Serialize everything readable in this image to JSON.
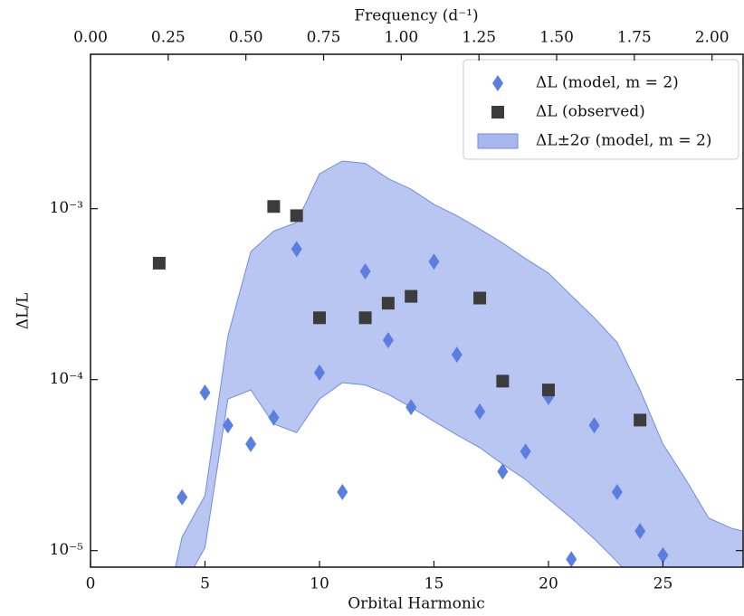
{
  "chart_data": {
    "type": "scatter",
    "xlabel": "Orbital Harmonic",
    "ylabel": "ΔL/L",
    "top_xlabel": "Frequency (d⁻¹)",
    "xlim": [
      0,
      28.5
    ],
    "xticks": [
      0,
      5,
      10,
      15,
      20,
      25
    ],
    "top_xlim": [
      0,
      2.1
    ],
    "top_xticks": [
      {
        "value": 0,
        "label": "0.00"
      },
      {
        "value": 0.25,
        "label": "0.25"
      },
      {
        "value": 0.5,
        "label": "0.50"
      },
      {
        "value": 0.75,
        "label": "0.75"
      },
      {
        "value": 1,
        "label": "1.00"
      },
      {
        "value": 1.25,
        "label": "1.25"
      },
      {
        "value": 1.5,
        "label": "1.50"
      },
      {
        "value": 1.75,
        "label": "1.75"
      },
      {
        "value": 2,
        "label": "2.00"
      }
    ],
    "ylim": [
      8e-06,
      0.008
    ],
    "yscale": "log",
    "yticks": [
      {
        "value": 1e-05,
        "label": "10⁻⁵"
      },
      {
        "value": 0.0001,
        "label": "10⁻⁴"
      },
      {
        "value": 0.001,
        "label": "10⁻³"
      }
    ],
    "legend": "upper right",
    "series": [
      {
        "name": "ΔL (model, m = 2)",
        "color": "#5b7fe0",
        "marker": "diamond",
        "x": [
          4,
          5,
          6,
          7,
          8,
          9,
          10,
          11,
          12,
          13,
          14,
          15,
          16,
          17,
          18,
          19,
          20,
          21,
          22,
          23,
          24,
          25
        ],
        "values": [
          2.05e-05,
          8.4e-05,
          5.4e-05,
          4.2e-05,
          6e-05,
          0.00058,
          0.00011,
          2.2e-05,
          0.00043,
          0.00017,
          6.9e-05,
          0.00049,
          0.00014,
          6.5e-05,
          2.9e-05,
          3.8e-05,
          7.9e-05,
          8.9e-06,
          5.4e-05,
          2.2e-05,
          1.3e-05,
          9.4e-06
        ]
      },
      {
        "name": "ΔL (observed)",
        "color": "#3c3c3c",
        "marker": "square",
        "x": [
          3,
          8,
          9,
          10,
          12,
          13,
          14,
          17,
          18,
          20,
          24
        ],
        "values": [
          0.00048,
          0.00103,
          0.00091,
          0.00023,
          0.00023,
          0.00028,
          0.000307,
          0.0003,
          9.8e-05,
          8.7e-05,
          5.8e-05
        ]
      }
    ],
    "band": {
      "name": "ΔL±2σ (model, m = 2)",
      "color": "#a8b8ef",
      "edge_color": "#6f8de2",
      "x": [
        3.5,
        4,
        5,
        6,
        7,
        8,
        9,
        10,
        11,
        12,
        13,
        14,
        15,
        16,
        17,
        18,
        19,
        20,
        21,
        22,
        23,
        24,
        25,
        26,
        27,
        28,
        28.5
      ],
      "upper": [
        6e-06,
        1.2e-05,
        2.1e-05,
        0.00018,
        0.00056,
        0.00074,
        0.00083,
        0.0016,
        0.0019,
        0.00184,
        0.0015,
        0.0013,
        0.00106,
        0.00091,
        0.00076,
        0.00063,
        0.00051,
        0.00042,
        0.00031,
        0.00023,
        0.000165,
        8.7e-05,
        4.2e-05,
        2.6e-05,
        1.55e-05,
        1.35e-05,
        1.3e-05
      ],
      "lower": [
        6e-06,
        6e-06,
        1.04e-05,
        7.7e-05,
        8.7e-05,
        5.5e-05,
        4.9e-05,
        7.7e-05,
        9.6e-05,
        9.3e-05,
        8.2e-05,
        6.9e-05,
        5.7e-05,
        4.75e-05,
        4e-05,
        3.2e-05,
        2.6e-05,
        2e-05,
        1.55e-05,
        1.17e-05,
        8.6e-06,
        6e-06,
        6e-06,
        6e-06,
        6e-06,
        6e-06,
        6e-06
      ]
    }
  }
}
